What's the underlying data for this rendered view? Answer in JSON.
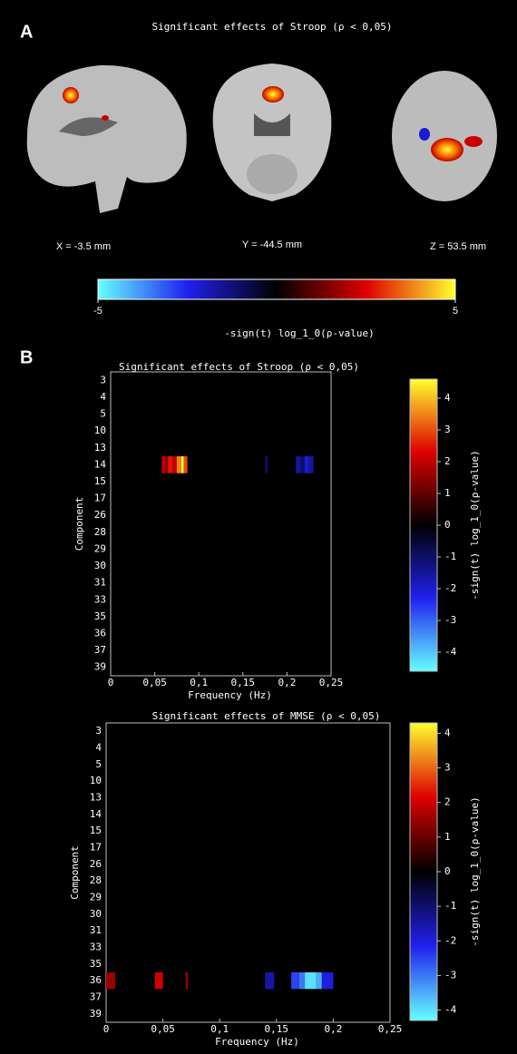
{
  "panel_a": {
    "label": "A",
    "title": "Significant effects of Stroop (ρ < 0,05)",
    "slices": [
      "X = -3.5 mm",
      "Y = -44.5 mm",
      "Z = 53.5 mm"
    ],
    "colorbar": {
      "lim": [
        -5,
        5
      ],
      "ticks": [
        -5,
        5
      ],
      "label": "-sign(t) log_1_0(ρ-value)",
      "colormap": [
        "#66ffff",
        "#2020ee",
        "#000000",
        "#dd0000",
        "#ffff30"
      ]
    }
  },
  "panel_b_label": "B",
  "chart_data": [
    {
      "type": "heatmap",
      "title": "Significant effects of Stroop (ρ < 0,05)",
      "x_label": "Frequency (Hz)",
      "y_label": "Component",
      "categories": [
        "3",
        "4",
        "5",
        "10",
        "13",
        "14",
        "15",
        "17",
        "26",
        "28",
        "29",
        "30",
        "31",
        "33",
        "35",
        "36",
        "37",
        "39"
      ],
      "xlim": [
        0,
        0.25
      ],
      "xticks": [
        0,
        {
          "value": 0.05,
          "label": "0,05"
        },
        {
          "value": 0.1,
          "label": "0,1"
        },
        {
          "value": 0.15,
          "label": "0,15"
        },
        {
          "value": 0.2,
          "label": "0,2"
        },
        {
          "value": 0.25,
          "label": "0,25"
        }
      ],
      "cells": [
        {
          "row": 5,
          "x": [
            0.058,
            0.062
          ],
          "value": 2
        },
        {
          "row": 5,
          "x": [
            0.062,
            0.065
          ],
          "value": 1.5
        },
        {
          "row": 5,
          "x": [
            0.065,
            0.07
          ],
          "value": 2.5
        },
        {
          "row": 5,
          "x": [
            0.07,
            0.075
          ],
          "value": 2
        },
        {
          "row": 5,
          "x": [
            0.075,
            0.08
          ],
          "value": 3.5
        },
        {
          "row": 5,
          "x": [
            0.08,
            0.083
          ],
          "value": 4.5
        },
        {
          "row": 5,
          "x": [
            0.083,
            0.087
          ],
          "value": 3
        },
        {
          "row": 5,
          "x": [
            0.175,
            0.178
          ],
          "value": -1
        },
        {
          "row": 5,
          "x": [
            0.21,
            0.215
          ],
          "value": -1.5
        },
        {
          "row": 5,
          "x": [
            0.215,
            0.22
          ],
          "value": -1
        },
        {
          "row": 5,
          "x": [
            0.22,
            0.225
          ],
          "value": -2
        },
        {
          "row": 5,
          "x": [
            0.225,
            0.23
          ],
          "value": -1.5
        }
      ],
      "colorbar": {
        "lim": [
          -4.6,
          4.6
        ],
        "ticks": [
          4,
          3,
          2,
          1,
          0,
          -1,
          -2,
          -3,
          -4
        ],
        "label": "-sign(t) log_1_0(ρ-value)"
      }
    },
    {
      "type": "heatmap",
      "title": "Significant effects of MMSE (ρ < 0,05)",
      "x_label": "Frequency (Hz)",
      "y_label": "Component",
      "categories": [
        "3",
        "4",
        "5",
        "10",
        "13",
        "14",
        "15",
        "17",
        "26",
        "28",
        "29",
        "30",
        "31",
        "33",
        "35",
        "36",
        "37",
        "39"
      ],
      "xlim": [
        0,
        0.25
      ],
      "xticks": [
        0,
        {
          "value": 0.05,
          "label": "0,05"
        },
        {
          "value": 0.1,
          "label": "0,1"
        },
        {
          "value": 0.15,
          "label": "0,15"
        },
        {
          "value": 0.2,
          "label": "0,2"
        },
        {
          "value": 0.25,
          "label": "0,25"
        }
      ],
      "cells": [
        {
          "row": 15,
          "x": [
            0,
            0.008
          ],
          "value": 1.5
        },
        {
          "row": 15,
          "x": [
            0.043,
            0.05
          ],
          "value": 2
        },
        {
          "row": 15,
          "x": [
            0.07,
            0.072
          ],
          "value": 1.5
        },
        {
          "row": 15,
          "x": [
            0.14,
            0.148
          ],
          "value": -1.5
        },
        {
          "row": 15,
          "x": [
            0.163,
            0.17
          ],
          "value": -2.5
        },
        {
          "row": 15,
          "x": [
            0.17,
            0.175
          ],
          "value": -3
        },
        {
          "row": 15,
          "x": [
            0.175,
            0.185
          ],
          "value": -4
        },
        {
          "row": 15,
          "x": [
            0.185,
            0.19
          ],
          "value": -3.5
        },
        {
          "row": 15,
          "x": [
            0.19,
            0.2
          ],
          "value": -2
        }
      ],
      "colorbar": {
        "lim": [
          -4.3,
          4.3
        ],
        "ticks": [
          4,
          3,
          2,
          1,
          0,
          -1,
          -2,
          -3,
          -4
        ],
        "label": "-sign(t) log_1_0(ρ-value)"
      }
    }
  ]
}
